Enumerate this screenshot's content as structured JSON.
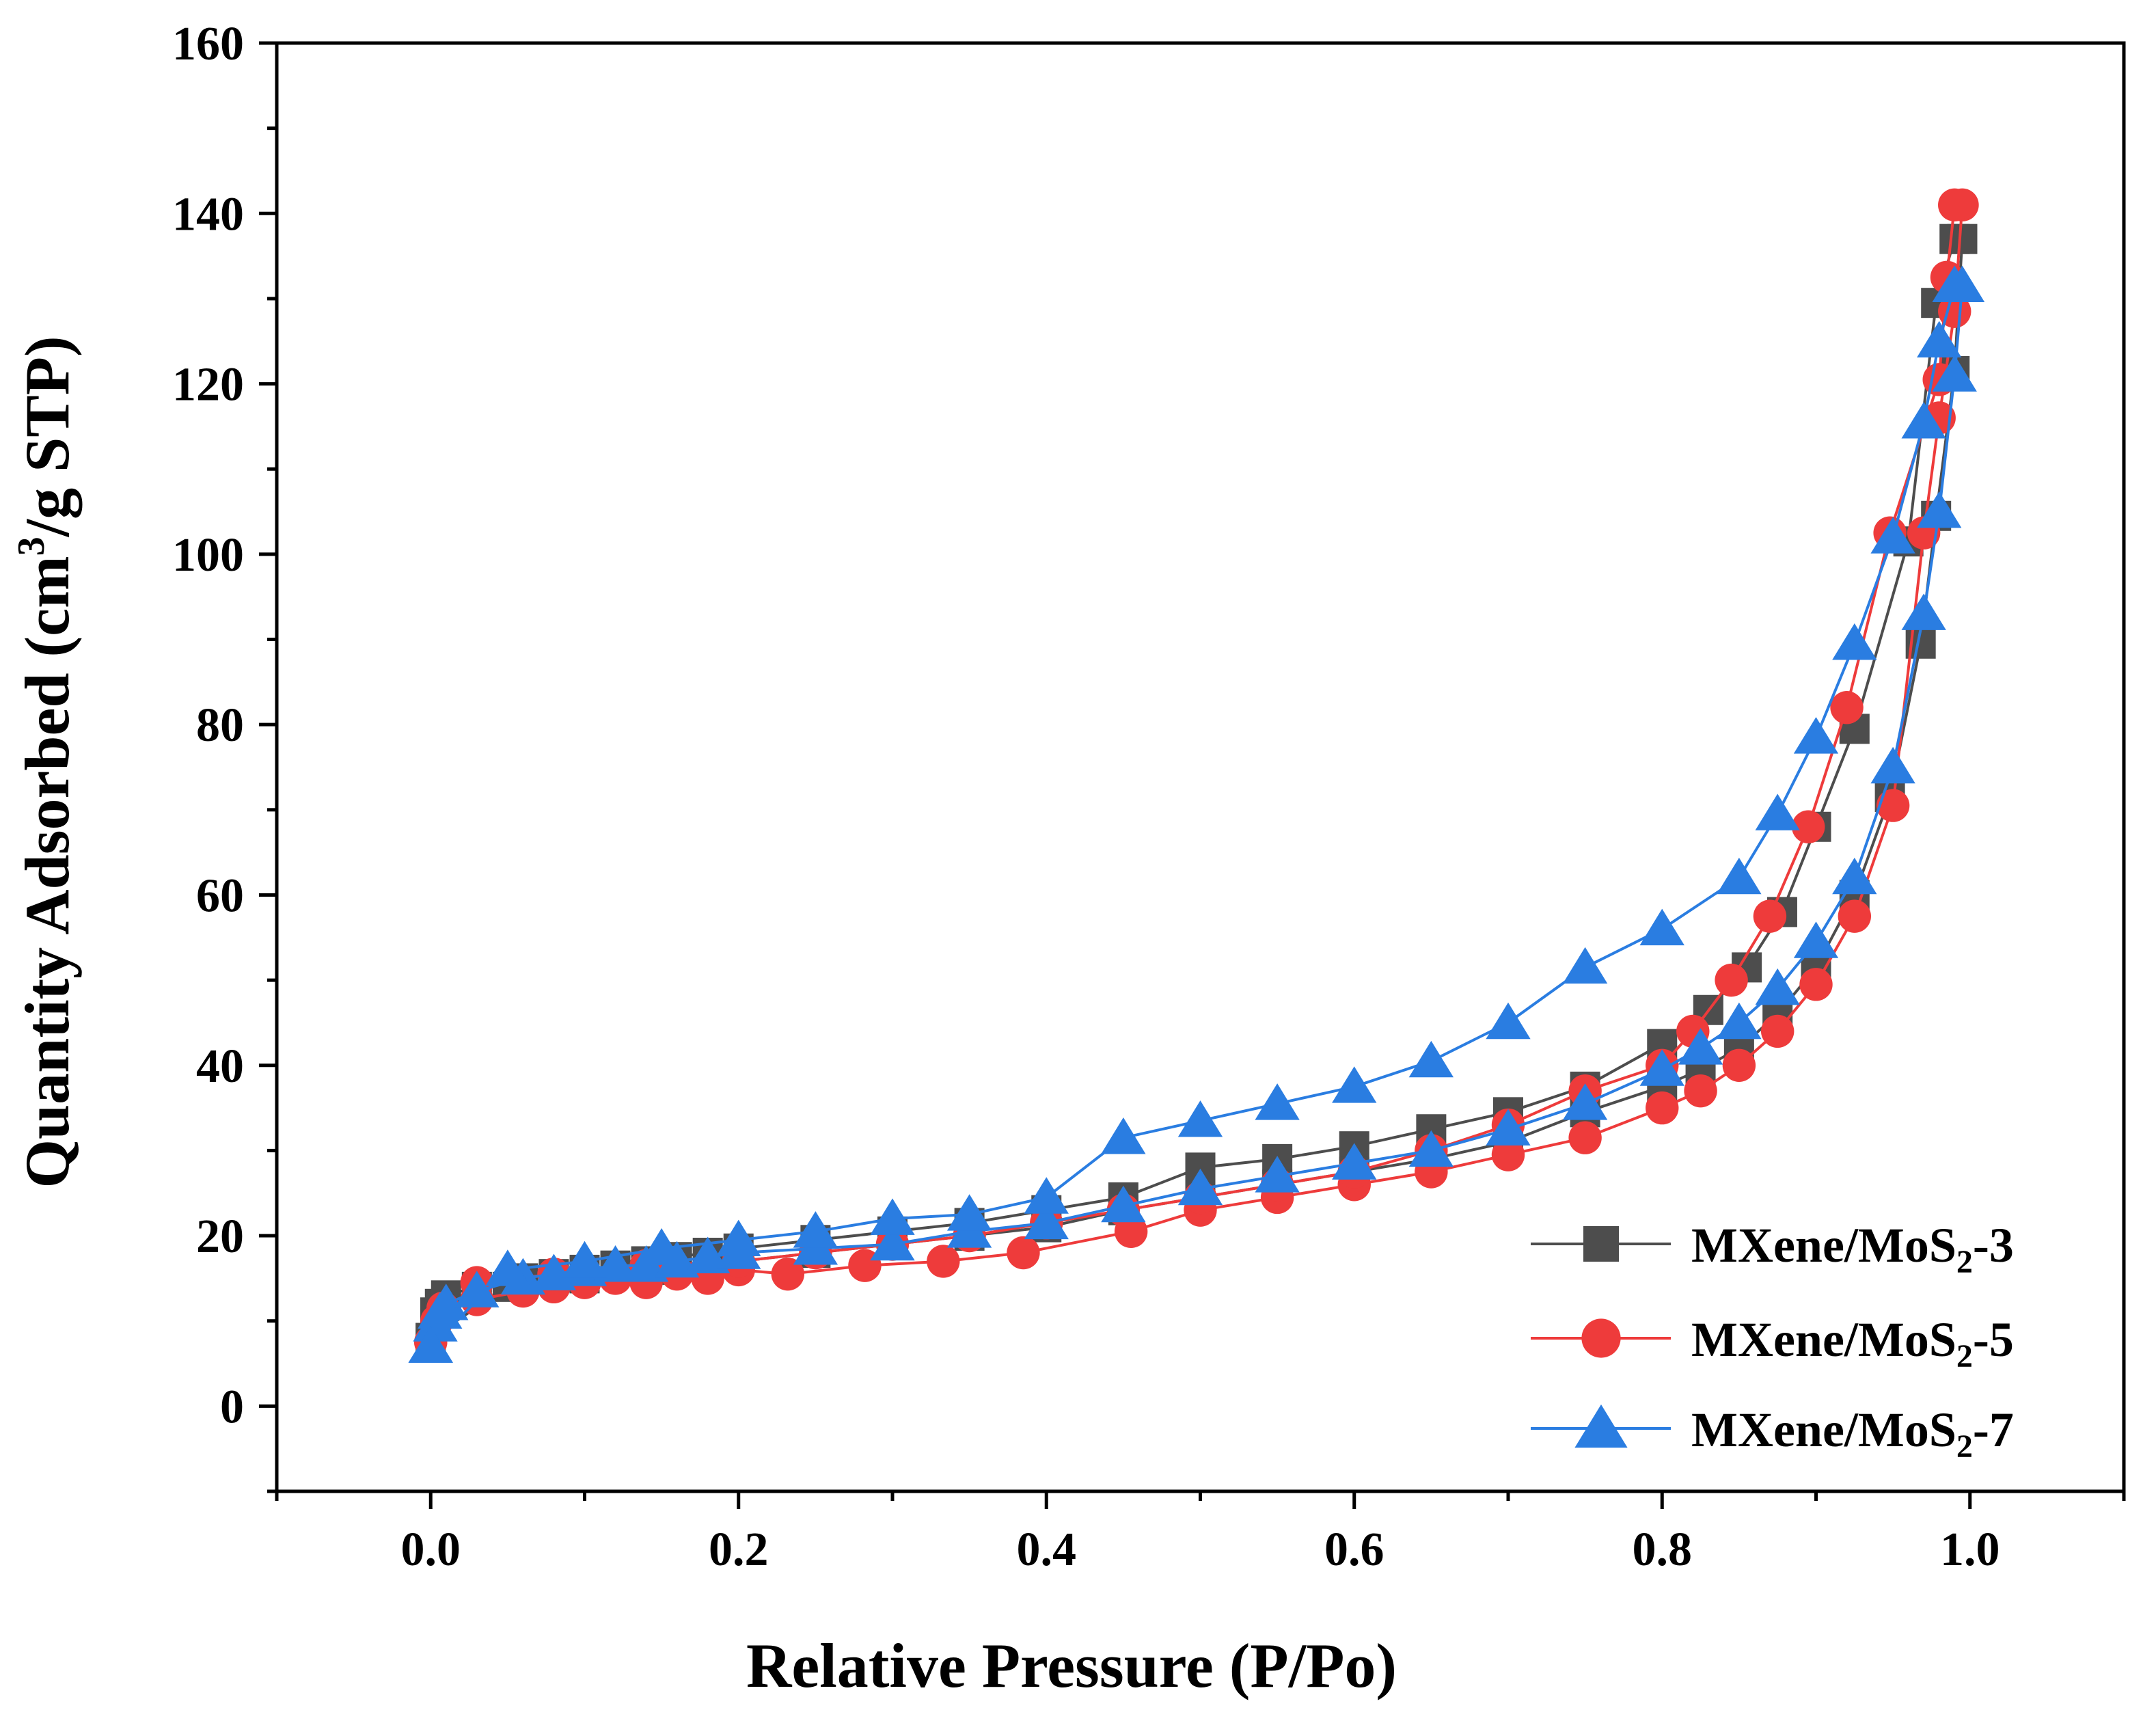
{
  "chart_data": {
    "type": "line",
    "xlabel": "Relative Pressure (P/Po)",
    "ylabel_main": "Quantity Adsorbed (cm",
    "ylabel_sup": "3",
    "ylabel_tail": "/g STP)",
    "xlim": [
      -0.1,
      1.1
    ],
    "ylim": [
      -10,
      160
    ],
    "x_ticks": [
      0.0,
      0.2,
      0.4,
      0.6,
      0.8,
      1.0
    ],
    "x_tick_labels": [
      "0.0",
      "0.2",
      "0.4",
      "0.6",
      "0.8",
      "1.0"
    ],
    "y_ticks": [
      0,
      20,
      40,
      60,
      80,
      100,
      120,
      140,
      160
    ],
    "y_tick_labels": [
      "0",
      "20",
      "40",
      "60",
      "80",
      "100",
      "120",
      "140",
      "160"
    ],
    "grid": false,
    "legend_position": "bottom-right",
    "series": [
      {
        "name_main": "MXene/MoS",
        "name_sub": "2",
        "name_tail": "-3",
        "color": "#4d4d4d",
        "marker": "square",
        "x": [
          0.0,
          0.003,
          0.006,
          0.01,
          0.03,
          0.06,
          0.08,
          0.1,
          0.12,
          0.14,
          0.16,
          0.18,
          0.2,
          0.25,
          0.3,
          0.35,
          0.4,
          0.45,
          0.5,
          0.55,
          0.6,
          0.65,
          0.7,
          0.75,
          0.8,
          0.83,
          0.855,
          0.878,
          0.9,
          0.925,
          0.96,
          0.978,
          0.99,
          0.995,
          0.99,
          0.978,
          0.968,
          0.948,
          0.925,
          0.9,
          0.875,
          0.85,
          0.825,
          0.8,
          0.75,
          0.7,
          0.65,
          0.6,
          0.55,
          0.5,
          0.45,
          0.4,
          0.35,
          0.3,
          0.25,
          0.2,
          0.15,
          0.1,
          0.05,
          0.0
        ],
        "y": [
          8,
          11,
          12,
          13,
          14,
          15,
          15.5,
          16,
          16.5,
          17,
          17.5,
          18,
          18.5,
          19.5,
          20.5,
          21.5,
          23,
          24.5,
          28,
          29,
          30.5,
          32.5,
          34.5,
          37.5,
          42.5,
          46.5,
          51.5,
          58,
          68,
          79.5,
          101.5,
          129.5,
          137,
          137,
          121.5,
          104.5,
          89.5,
          71.5,
          60,
          51.5,
          46,
          42,
          39.5,
          37.5,
          34.5,
          31,
          29,
          27.5,
          26,
          24.5,
          23,
          21,
          20,
          19,
          18,
          17,
          16,
          15,
          14,
          8
        ]
      },
      {
        "name_main": "MXene/MoS",
        "name_sub": "2",
        "name_tail": "-5",
        "color": "#ee3b3b",
        "marker": "circle",
        "x": [
          0.0,
          0.004,
          0.008,
          0.03,
          0.06,
          0.08,
          0.1,
          0.12,
          0.14,
          0.16,
          0.18,
          0.2,
          0.232,
          0.282,
          0.333,
          0.385,
          0.455,
          0.5,
          0.55,
          0.6,
          0.65,
          0.7,
          0.75,
          0.8,
          0.825,
          0.85,
          0.875,
          0.9,
          0.925,
          0.95,
          0.97,
          0.98,
          0.99,
          0.995,
          0.99,
          0.985,
          0.98,
          0.948,
          0.92,
          0.895,
          0.87,
          0.845,
          0.82,
          0.8,
          0.75,
          0.7,
          0.65,
          0.6,
          0.55,
          0.5,
          0.45,
          0.4,
          0.35,
          0.3,
          0.25,
          0.2,
          0.14,
          0.08,
          0.03,
          0.0
        ],
        "y": [
          7.5,
          10,
          11.5,
          12.5,
          13.5,
          14,
          14.5,
          15,
          14.5,
          15.5,
          15,
          16,
          15.5,
          16.5,
          17,
          18,
          20.5,
          23,
          24.5,
          26,
          27.5,
          29.5,
          31.5,
          35,
          37,
          40,
          44,
          49.5,
          57.5,
          70.5,
          102.5,
          116,
          128.5,
          141,
          141,
          132.5,
          120.5,
          102.5,
          82,
          68,
          57.5,
          50,
          44,
          40,
          37,
          33,
          30,
          27.5,
          26,
          24.5,
          23,
          21.5,
          20,
          19,
          18,
          17,
          16.5,
          15.5,
          14.5,
          7.5
        ]
      },
      {
        "name_main": "MXene/MoS",
        "name_sub": "2",
        "name_tail": "-7",
        "color": "#2a7de1",
        "marker": "triangle",
        "x": [
          0.0,
          0.003,
          0.006,
          0.01,
          0.03,
          0.06,
          0.08,
          0.1,
          0.12,
          0.14,
          0.16,
          0.18,
          0.2,
          0.25,
          0.3,
          0.35,
          0.4,
          0.45,
          0.5,
          0.55,
          0.6,
          0.65,
          0.7,
          0.75,
          0.8,
          0.825,
          0.85,
          0.875,
          0.9,
          0.925,
          0.95,
          0.97,
          0.98,
          0.99,
          0.995,
          0.99,
          0.98,
          0.97,
          0.95,
          0.925,
          0.9,
          0.875,
          0.85,
          0.8,
          0.75,
          0.7,
          0.65,
          0.6,
          0.55,
          0.5,
          0.45,
          0.4,
          0.35,
          0.3,
          0.25,
          0.2,
          0.15,
          0.1,
          0.05,
          0.0
        ],
        "y": [
          7,
          9.5,
          11,
          12,
          13.5,
          15,
          15.5,
          16,
          16.5,
          16.5,
          17,
          17.5,
          18,
          18.5,
          19,
          20.5,
          21.5,
          23.5,
          25.5,
          27,
          28.5,
          30,
          32.5,
          35.5,
          39.5,
          42,
          45,
          49,
          54.5,
          62,
          75,
          93,
          105,
          121,
          131.5,
          131.5,
          125,
          115.5,
          102,
          89.5,
          78.5,
          69.5,
          62,
          56,
          51.5,
          45,
          40.5,
          37.5,
          35.5,
          33.5,
          31.5,
          24.5,
          22.5,
          22,
          20.5,
          19.5,
          18.5,
          17,
          16,
          7
        ]
      }
    ]
  }
}
